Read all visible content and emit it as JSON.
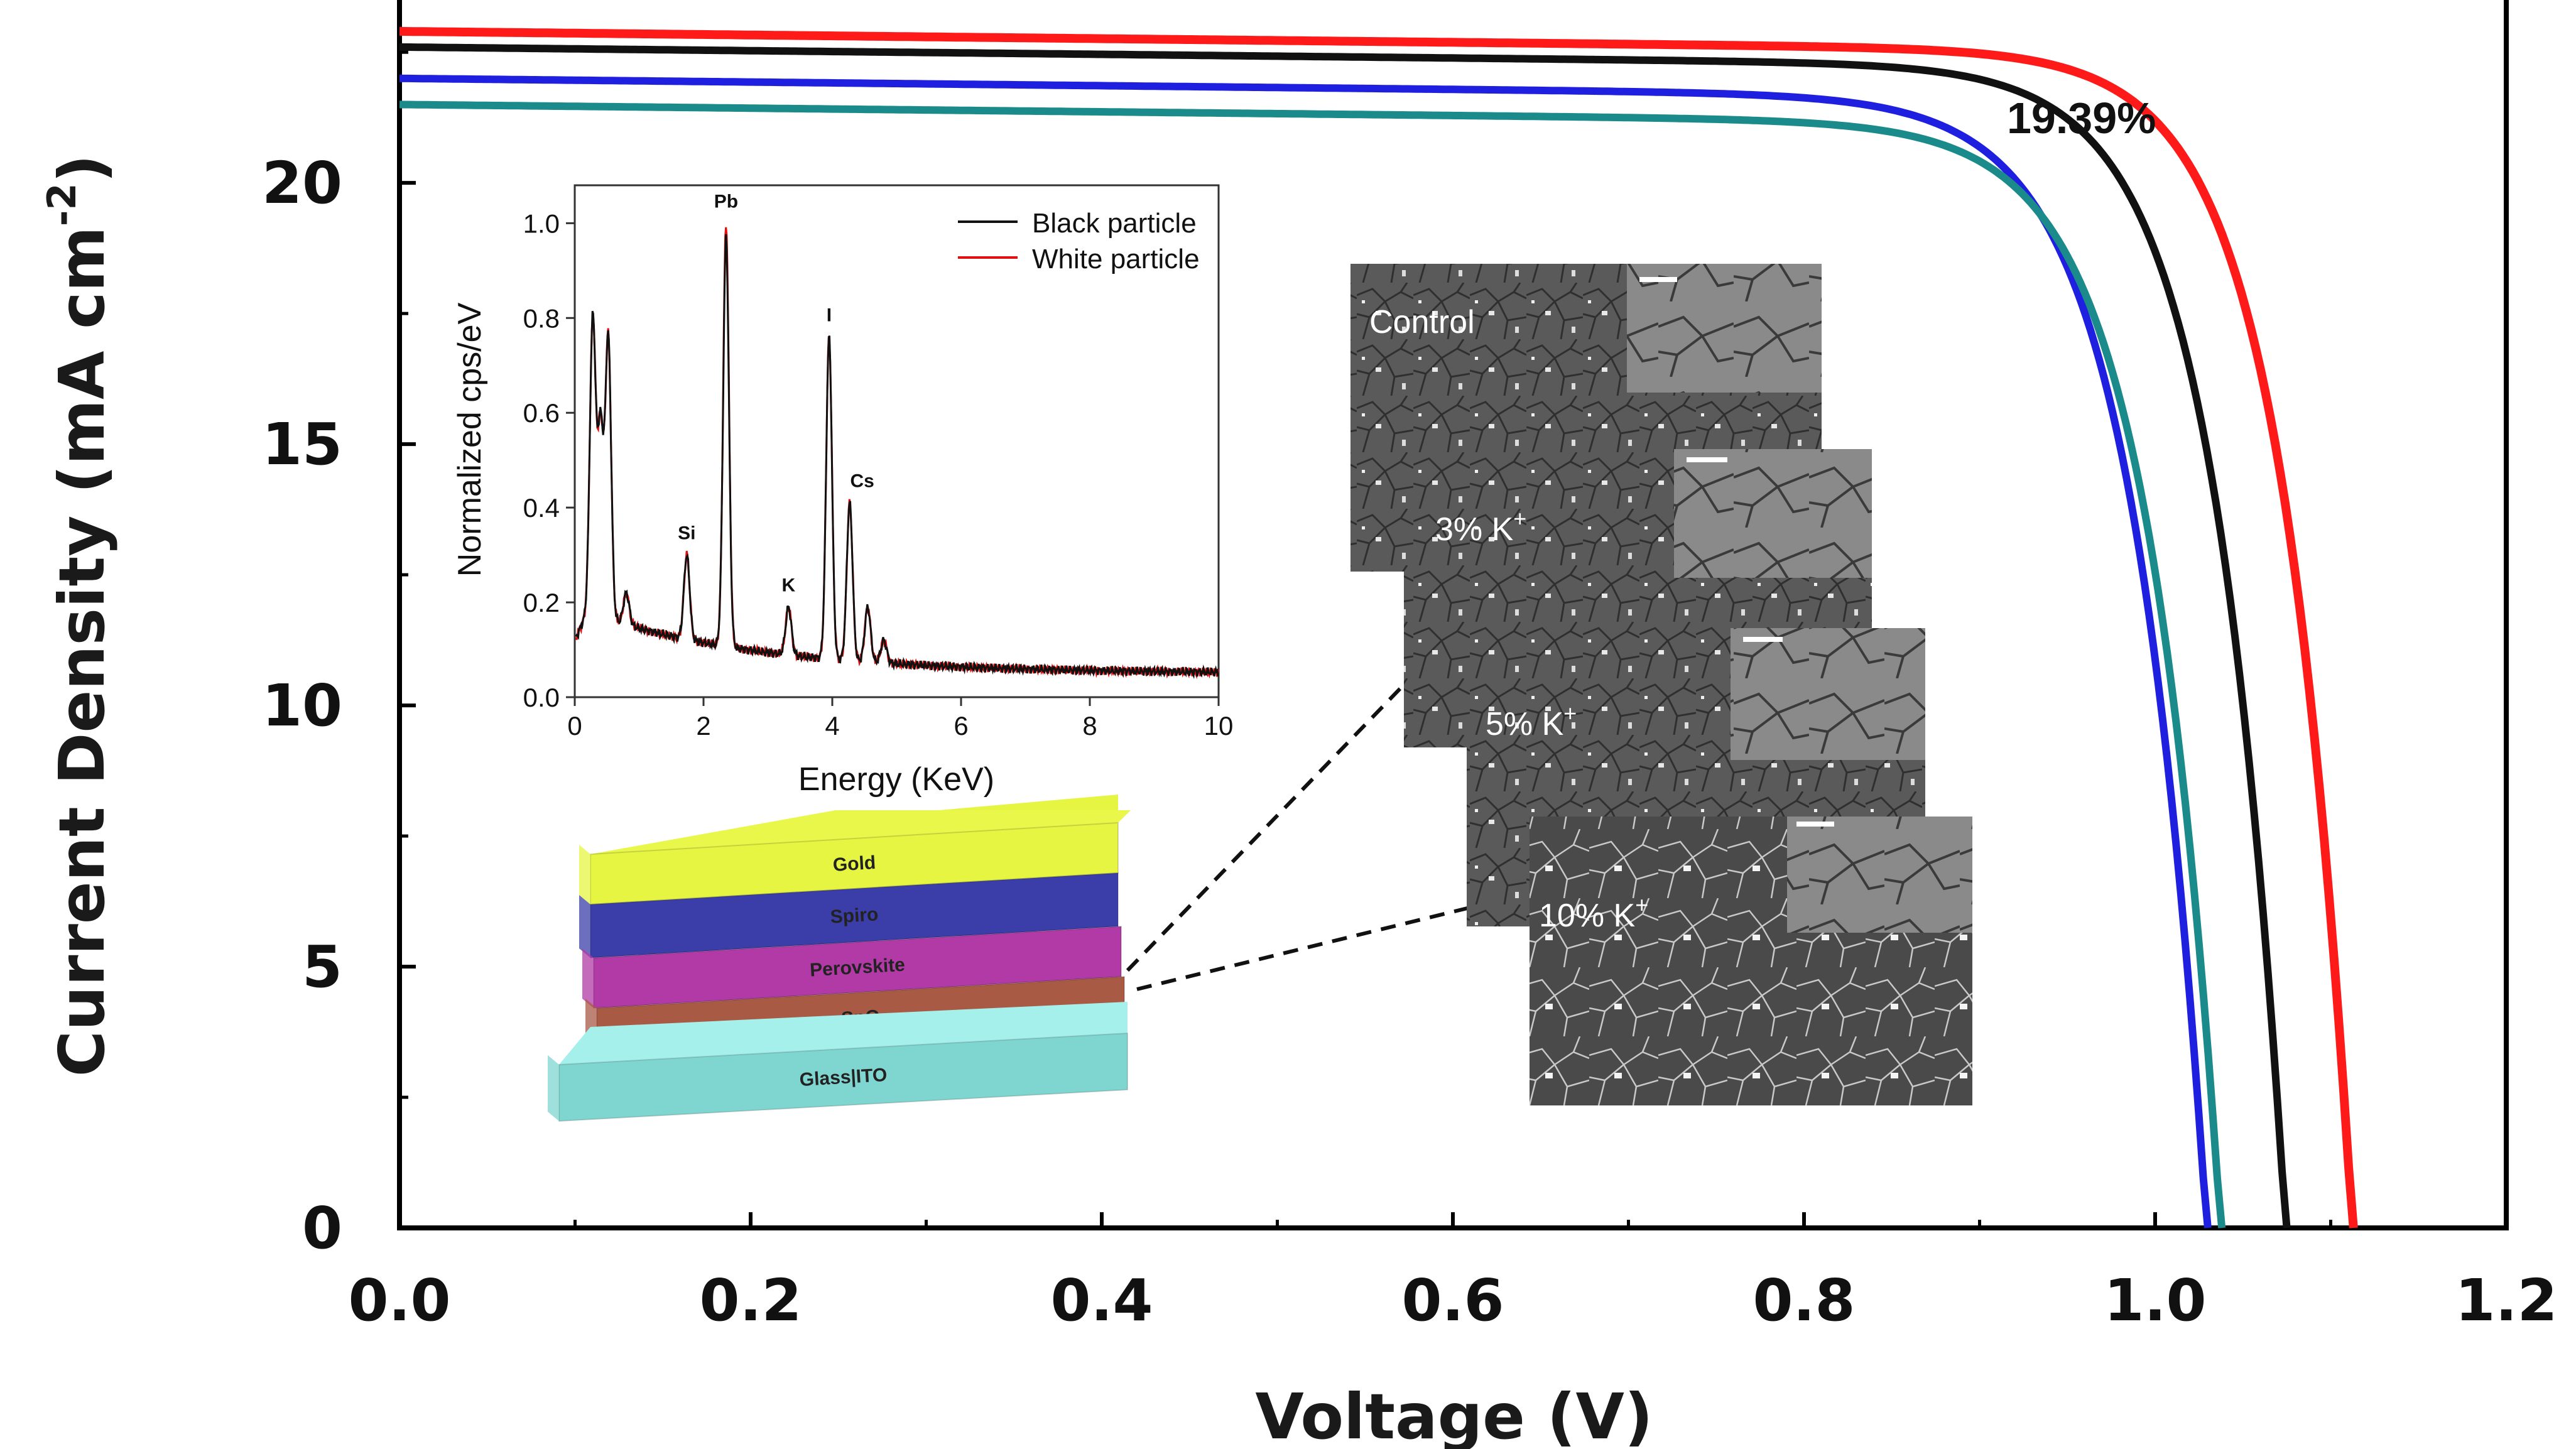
{
  "chart_data": [
    {
      "type": "line",
      "xlabel": "Voltage (V)",
      "ylabel": "Current Density (mA cm",
      "ylabel_sup": "-2",
      "xlim": [
        0.0,
        1.2
      ],
      "ylim": [
        0,
        23.5
      ],
      "x_ticks": [
        "0.0",
        "0.2",
        "0.4",
        "0.6",
        "0.8",
        "1.0",
        "1.2"
      ],
      "y_ticks": [
        "0",
        "5",
        "10",
        "15",
        "20"
      ],
      "annotation": "19.39%",
      "series": [
        {
          "color": "#ff1a1a",
          "jsc": 22.9,
          "voc": 1.113,
          "knee_v": 0.97,
          "stroke": 14
        },
        {
          "color": "#111111",
          "jsc": 22.6,
          "voc": 1.075,
          "knee_v": 0.93,
          "stroke": 12
        },
        {
          "color": "#1f1fe0",
          "jsc": 22.0,
          "voc": 1.03,
          "knee_v": 0.88,
          "stroke": 12
        },
        {
          "color": "#1a8a8a",
          "jsc": 21.5,
          "voc": 1.038,
          "knee_v": 0.89,
          "stroke": 12
        }
      ]
    },
    {
      "type": "line",
      "xlabel": "Energy (KeV)",
      "ylabel": "Normalized cps/eV",
      "xlim": [
        0,
        10
      ],
      "ylim": [
        0,
        1.08
      ],
      "x_ticks": [
        "0",
        "2",
        "4",
        "6",
        "8",
        "10"
      ],
      "y_ticks": [
        "0.0",
        "0.2",
        "0.4",
        "0.6",
        "0.8",
        "1.0"
      ],
      "series": [
        {
          "name": "Black particle",
          "color": "#111111"
        },
        {
          "name": "White particle",
          "color": "#e01010"
        }
      ],
      "peaks": [
        {
          "label": "Pb",
          "x": 2.35,
          "y": 1.0
        },
        {
          "label": "I",
          "x": 3.95,
          "y": 0.76
        },
        {
          "label": "Cs",
          "x": 4.27,
          "y": 0.41
        },
        {
          "label": "Si",
          "x": 1.74,
          "y": 0.3
        },
        {
          "label": "K",
          "x": 3.32,
          "y": 0.19
        }
      ],
      "background_lines": [
        {
          "x": 0.28,
          "y": 0.8
        },
        {
          "x": 0.4,
          "y": 0.57
        },
        {
          "x": 0.52,
          "y": 0.76
        },
        {
          "x": 0.8,
          "y": 0.22
        },
        {
          "x": 4.55,
          "y": 0.19
        },
        {
          "x": 4.8,
          "y": 0.12
        }
      ]
    }
  ],
  "device_stack": {
    "layers": [
      {
        "label": "Gold",
        "color": "#e6f542"
      },
      {
        "label": "Spiro",
        "color": "#3b3da8"
      },
      {
        "label": "Perovskite",
        "color": "#b23aa6"
      },
      {
        "label": "SnO",
        "color": "#a85a45"
      },
      {
        "label": "Glass|ITO",
        "color": "#7fd6d0"
      }
    ]
  },
  "sem_images": {
    "labels": [
      "Control",
      "3% K",
      "5% K",
      "10% K"
    ],
    "sup": "+"
  }
}
